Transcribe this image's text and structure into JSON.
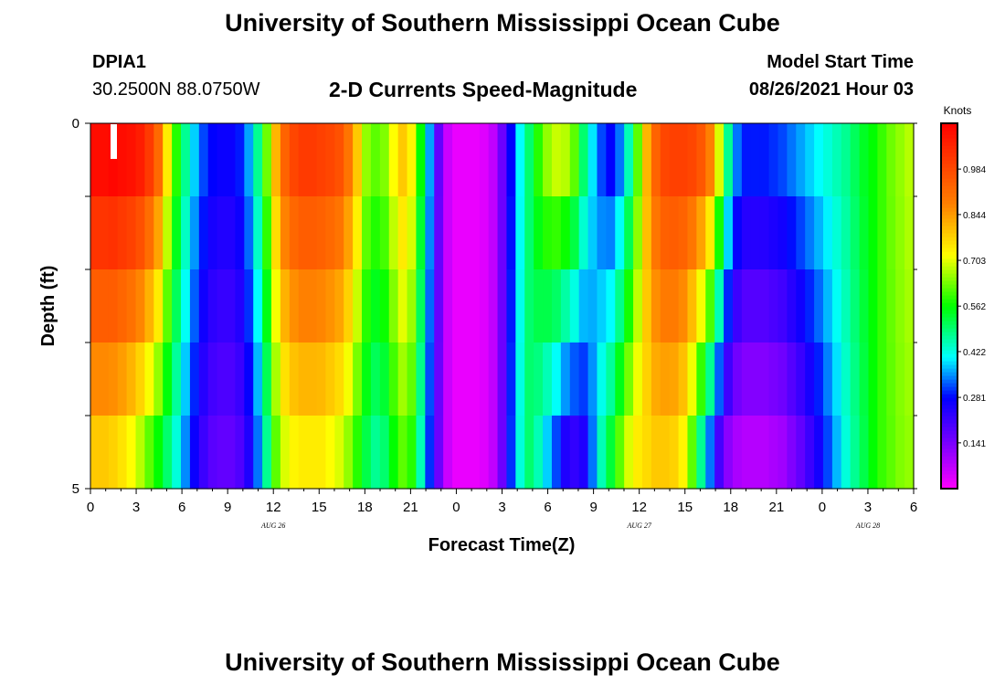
{
  "header": {
    "title_top": "University of Southern Mississippi Ocean Cube",
    "title_bottom": "University of Southern Mississippi Ocean Cube",
    "station_id": "DPIA1",
    "station_coords": "30.2500N  88.0750W",
    "product_name": "2-D Currents Speed-Magnitude",
    "model_start_label": "Model Start Time",
    "model_start_value": "08/26/2021 Hour 03"
  },
  "chart_data": {
    "type": "heatmap",
    "title": "2-D Currents Speed-Magnitude",
    "xlabel": "Forecast Time(Z)",
    "ylabel": "Depth (ft)",
    "x_hours_total": 54,
    "x_tick_labels": [
      "0",
      "3",
      "6",
      "9",
      "12",
      "15",
      "18",
      "21",
      "0",
      "3",
      "6",
      "9",
      "12",
      "15",
      "18",
      "21",
      "0",
      "3",
      "6"
    ],
    "date_labels": [
      {
        "label": "AUG  26",
        "hour": 12
      },
      {
        "label": "AUG  27",
        "hour": 36
      },
      {
        "label": "AUG  28",
        "hour": 51
      }
    ],
    "y_tick_labels": [
      "0",
      "5"
    ],
    "y_range": [
      0,
      5
    ],
    "colorbar": {
      "unit": "Knots",
      "min": 0.0,
      "max": 1.125,
      "tick_values": [
        0.984,
        0.844,
        0.703,
        0.562,
        0.422,
        0.281,
        0.141
      ],
      "tick_labels": [
        "0.984",
        "0.844",
        "0.703",
        "0.562",
        "0.422",
        "0.281",
        "0.141"
      ]
    },
    "depth_levels": 5,
    "speed_profile_surface": [
      0.98,
      0.98,
      0.99,
      0.98,
      0.97,
      0.95,
      0.9,
      0.82,
      0.66,
      0.52,
      0.42,
      0.34,
      0.28,
      0.25,
      0.24,
      0.24,
      0.26,
      0.32,
      0.42,
      0.56,
      0.72,
      0.83,
      0.88,
      0.9,
      0.9,
      0.89,
      0.88,
      0.86,
      0.8,
      0.7,
      0.58,
      0.55,
      0.57,
      0.64,
      0.7,
      0.65,
      0.5,
      0.32,
      0.15,
      0.05,
      0.02,
      0.02,
      0.02,
      0.03,
      0.06,
      0.14,
      0.25,
      0.36,
      0.44,
      0.52,
      0.58,
      0.61,
      0.6,
      0.55,
      0.44,
      0.35,
      0.28,
      0.25,
      0.3,
      0.4,
      0.55,
      0.72,
      0.83,
      0.88,
      0.89,
      0.89,
      0.88,
      0.85,
      0.78,
      0.62,
      0.42,
      0.3,
      0.26,
      0.26,
      0.26,
      0.27,
      0.28,
      0.3,
      0.32,
      0.34,
      0.36,
      0.38,
      0.4,
      0.42,
      0.45,
      0.48,
      0.5,
      0.53,
      0.56,
      0.58,
      0.6
    ],
    "speed_profile_bottom": [
      0.7,
      0.7,
      0.69,
      0.67,
      0.64,
      0.6,
      0.55,
      0.5,
      0.44,
      0.38,
      0.31,
      0.24,
      0.19,
      0.16,
      0.15,
      0.15,
      0.17,
      0.22,
      0.3,
      0.42,
      0.55,
      0.62,
      0.65,
      0.66,
      0.66,
      0.66,
      0.64,
      0.62,
      0.58,
      0.52,
      0.46,
      0.42,
      0.44,
      0.5,
      0.55,
      0.52,
      0.4,
      0.27,
      0.14,
      0.05,
      0.02,
      0.02,
      0.02,
      0.03,
      0.06,
      0.14,
      0.27,
      0.38,
      0.44,
      0.4,
      0.34,
      0.28,
      0.22,
      0.2,
      0.22,
      0.3,
      0.4,
      0.47,
      0.55,
      0.62,
      0.66,
      0.68,
      0.7,
      0.7,
      0.69,
      0.65,
      0.55,
      0.42,
      0.3,
      0.18,
      0.11,
      0.08,
      0.07,
      0.07,
      0.07,
      0.08,
      0.09,
      0.12,
      0.15,
      0.19,
      0.23,
      0.28,
      0.33,
      0.38,
      0.42,
      0.46,
      0.5,
      0.53,
      0.55,
      0.57,
      0.58
    ],
    "depth_scale": [
      1.0,
      0.96,
      0.88,
      0.78,
      0.62
    ]
  }
}
